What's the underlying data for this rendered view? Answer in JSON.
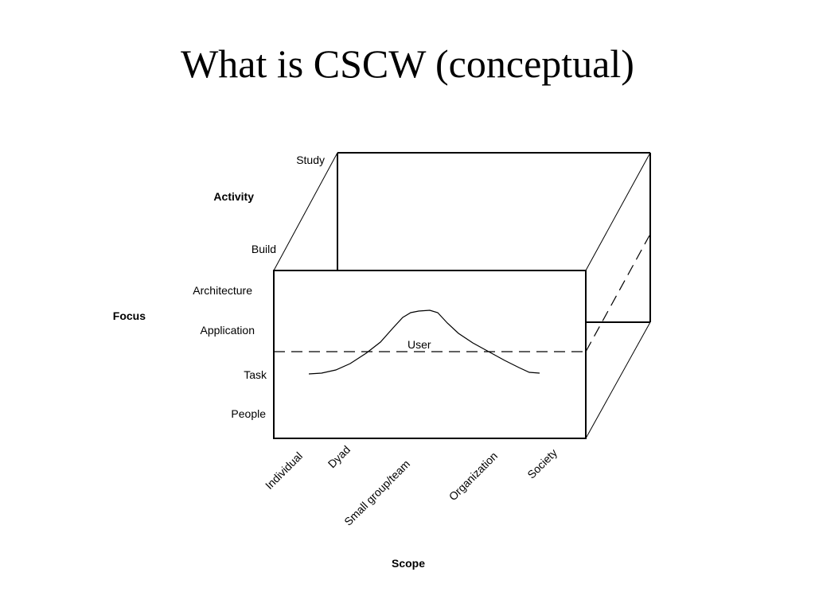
{
  "title": "What is CSCW (conceptual)",
  "diagram": {
    "activity": {
      "title": "Activity",
      "levels": [
        "Study",
        "Build"
      ]
    },
    "focus": {
      "title": "Focus",
      "levels": [
        "Architecture",
        "Application",
        "Task",
        "People"
      ]
    },
    "scope": {
      "title": "Scope",
      "levels": [
        "Individual",
        "Dyad",
        "Small group/team",
        "Organization",
        "Society"
      ]
    },
    "curve_label": "User",
    "colors": {
      "line": "#000000",
      "background": "#ffffff"
    }
  }
}
